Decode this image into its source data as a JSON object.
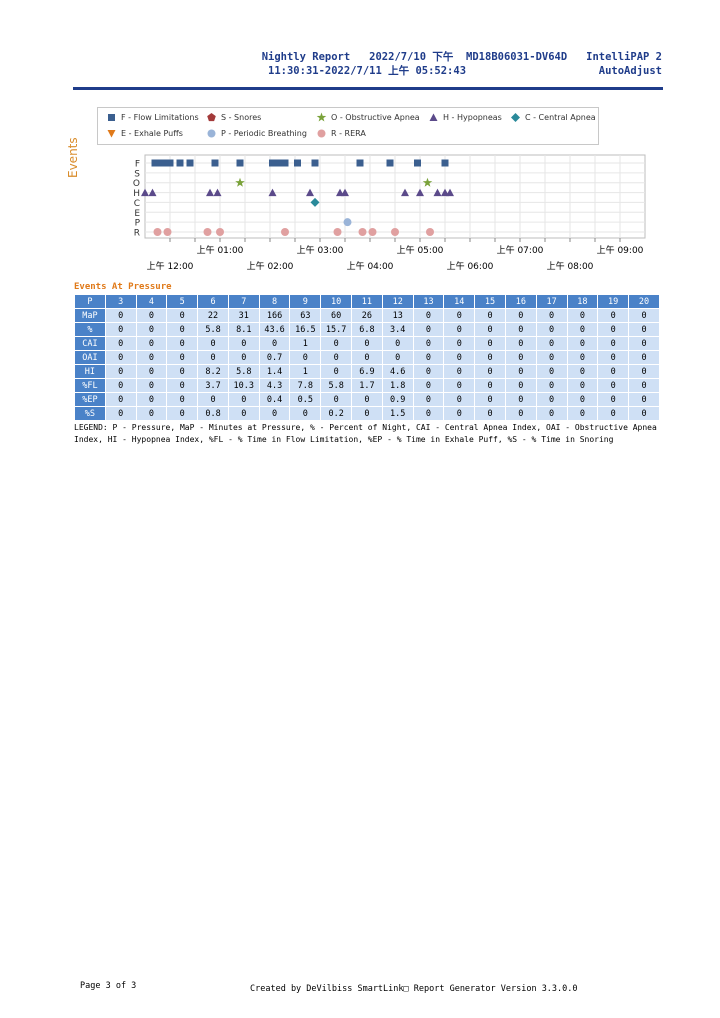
{
  "header": {
    "line1": "Nightly Report   2022/7/10 下午  MD18B06031-DV64D   IntelliPAP 2",
    "line2": "11:30:31-2022/7/11 上午 05:52:43                     AutoAdjust"
  },
  "legend": {
    "items": [
      {
        "label": "F - Flow Limitations",
        "icon": "square-icon",
        "color": "#3b5f8f"
      },
      {
        "label": "S - Snores",
        "icon": "pentagon-icon",
        "color": "#a33a3a"
      },
      {
        "label": "O - Obstructive Apnea",
        "icon": "star-icon",
        "color": "#7aa23a"
      },
      {
        "label": "H - Hypopneas",
        "icon": "triangle-up-icon",
        "color": "#5b4a8a"
      },
      {
        "label": "C - Central Apnea",
        "icon": "diamond-icon",
        "color": "#2a8a9a"
      },
      {
        "label": "E - Exhale Puffs",
        "icon": "triangle-down-icon",
        "color": "#e07a1a"
      },
      {
        "label": "P - Periodic Breathing",
        "icon": "circle-icon",
        "color": "#9ab4d8"
      },
      {
        "label": "R - RERA",
        "icon": "circle-icon",
        "color": "#e0a0a0"
      }
    ]
  },
  "y_axis_title": "Events",
  "chart_data": {
    "type": "scatter",
    "y_categories": [
      "F",
      "S",
      "O",
      "H",
      "C",
      "E",
      "P",
      "R"
    ],
    "x_range_hours": [
      23.5,
      29.6
    ],
    "x_ticks_top": [
      {
        "h": 25,
        "label": "上午 01:00"
      },
      {
        "h": 27,
        "label": "上午 03:00"
      },
      {
        "h": 29,
        "label": "上午 05:00"
      },
      {
        "h": 31,
        "label": "上午 07:00"
      },
      {
        "h": 33,
        "label": "上午 09:00"
      }
    ],
    "x_ticks_bottom": [
      {
        "h": 24,
        "label": "上午 12:00"
      },
      {
        "h": 26,
        "label": "上午 02:00"
      },
      {
        "h": 28,
        "label": "上午 04:00"
      },
      {
        "h": 30,
        "label": "上午 06:00"
      },
      {
        "h": 32,
        "label": "上午 08:00"
      }
    ],
    "series": [
      {
        "name": "F",
        "color": "#3b5f8f",
        "marker": "square",
        "x": [
          23.7,
          23.78,
          23.85,
          23.92,
          24.0,
          24.2,
          24.4,
          24.9,
          25.4,
          26.05,
          26.12,
          26.2,
          26.3,
          26.55,
          26.9,
          27.8,
          28.4,
          28.95,
          29.5
        ]
      },
      {
        "name": "O",
        "color": "#7aa23a",
        "marker": "star",
        "x": [
          25.4,
          29.15
        ]
      },
      {
        "name": "H",
        "color": "#5b4a8a",
        "marker": "triangle",
        "x": [
          23.5,
          23.65,
          24.8,
          24.95,
          26.05,
          26.8,
          27.4,
          27.5,
          28.7,
          29.0,
          29.35,
          29.5,
          29.6
        ]
      },
      {
        "name": "C",
        "color": "#2a8a9a",
        "marker": "diamond",
        "x": [
          26.9
        ]
      },
      {
        "name": "P",
        "color": "#9ab4d8",
        "marker": "circle",
        "x": [
          27.55
        ]
      },
      {
        "name": "R",
        "color": "#e0a0a0",
        "marker": "circle",
        "x": [
          23.75,
          23.95,
          24.75,
          25.0,
          26.3,
          27.35,
          27.85,
          28.05,
          28.5,
          29.2
        ]
      }
    ]
  },
  "events_title": "Events At Pressure",
  "pressure_table": {
    "header": [
      "P",
      "3",
      "4",
      "5",
      "6",
      "7",
      "8",
      "9",
      "10",
      "11",
      "12",
      "13",
      "14",
      "15",
      "16",
      "17",
      "18",
      "19",
      "20"
    ],
    "rows": [
      [
        "MaP",
        "0",
        "0",
        "0",
        "22",
        "31",
        "166",
        "63",
        "60",
        "26",
        "13",
        "0",
        "0",
        "0",
        "0",
        "0",
        "0",
        "0",
        "0"
      ],
      [
        "%",
        "0",
        "0",
        "0",
        "5.8",
        "8.1",
        "43.6",
        "16.5",
        "15.7",
        "6.8",
        "3.4",
        "0",
        "0",
        "0",
        "0",
        "0",
        "0",
        "0",
        "0"
      ],
      [
        "CAI",
        "0",
        "0",
        "0",
        "0",
        "0",
        "0",
        "1",
        "0",
        "0",
        "0",
        "0",
        "0",
        "0",
        "0",
        "0",
        "0",
        "0",
        "0"
      ],
      [
        "OAI",
        "0",
        "0",
        "0",
        "0",
        "0",
        "0.7",
        "0",
        "0",
        "0",
        "0",
        "0",
        "0",
        "0",
        "0",
        "0",
        "0",
        "0",
        "0"
      ],
      [
        "HI",
        "0",
        "0",
        "0",
        "8.2",
        "5.8",
        "1.4",
        "1",
        "0",
        "6.9",
        "4.6",
        "0",
        "0",
        "0",
        "0",
        "0",
        "0",
        "0",
        "0"
      ],
      [
        "%FL",
        "0",
        "0",
        "0",
        "3.7",
        "10.3",
        "4.3",
        "7.8",
        "5.8",
        "1.7",
        "1.8",
        "0",
        "0",
        "0",
        "0",
        "0",
        "0",
        "0",
        "0"
      ],
      [
        "%EP",
        "0",
        "0",
        "0",
        "0",
        "0",
        "0.4",
        "0.5",
        "0",
        "0",
        "0.9",
        "0",
        "0",
        "0",
        "0",
        "0",
        "0",
        "0",
        "0"
      ],
      [
        "%S",
        "0",
        "0",
        "0",
        "0.8",
        "0",
        "0",
        "0",
        "0.2",
        "0",
        "1.5",
        "0",
        "0",
        "0",
        "0",
        "0",
        "0",
        "0",
        "0"
      ]
    ]
  },
  "legend_text": "LEGEND:  P - Pressure, MaP - Minutes at Pressure, % - Percent of Night, CAI - Central Apnea Index, OAI - Obstructive Apnea Index, HI - Hypopnea Index, %FL - % Time in Flow Limitation, %EP - % Time in Exhale Puff, %S - % Time in Snoring",
  "footer": {
    "page": "Page 3 of 3",
    "created": "Created by DeVilbiss SmartLink□ Report Generator Version 3.3.0.0"
  }
}
